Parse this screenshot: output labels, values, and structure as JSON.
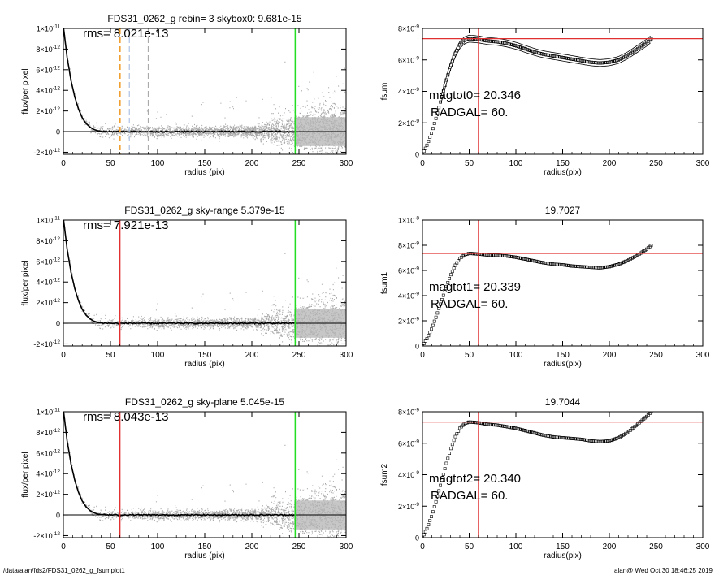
{
  "footer": {
    "path": "/data/alan/fds2/FDS31_0262_g_fsumplot1",
    "timestamp": "alan@  Wed Oct 30 18:46:25 2019"
  },
  "colors": {
    "scatter": "#a8a8a8",
    "profile": "#000000",
    "red": "#e03030",
    "green": "#22dd22",
    "orange": "#f0a030",
    "blue": "#9db6e0",
    "gray": "#a0a0a0"
  },
  "chart_data": [
    {
      "id": "flux-rebin",
      "type": "scatter",
      "title": "FDS31_0262_g rebin= 3    skybox0:  9.681e-15",
      "annotation": "rms= 8.021e-13",
      "xlabel": "radius (pix)",
      "ylabel": "flux/per pixel",
      "xlim": [
        0,
        300
      ],
      "ylim": [
        -2.2e-12,
        1e-11
      ],
      "xticks": [
        "0",
        "50",
        "100",
        "150",
        "200",
        "250",
        "300"
      ],
      "yticks": [
        {
          "v": 1e-11,
          "base": "1×10",
          "exp": "-11"
        },
        {
          "v": 8e-12,
          "base": "8×10",
          "exp": "-12"
        },
        {
          "v": 6e-12,
          "base": "6×10",
          "exp": "-12"
        },
        {
          "v": 4e-12,
          "base": "4×10",
          "exp": "-12"
        },
        {
          "v": 2e-12,
          "base": "2×10",
          "exp": "-12"
        },
        {
          "v": 0,
          "base": "0",
          "exp": ""
        },
        {
          "v": -2e-12,
          "base": "-2×10",
          "exp": "-12"
        }
      ],
      "profile": {
        "x": [
          0,
          4,
          8,
          12,
          16,
          20,
          24,
          28,
          32,
          36,
          40,
          45,
          50,
          60,
          80,
          100,
          150,
          200,
          245
        ],
        "y": [
          1.02e-11,
          7.2e-12,
          5e-12,
          3.4e-12,
          2.2e-12,
          1.35e-12,
          8e-13,
          4.5e-13,
          2.2e-13,
          1e-13,
          4e-14,
          1e-14,
          0,
          -1e-14,
          1e-14,
          -1e-14,
          0,
          0,
          0
        ]
      },
      "vlines": [
        {
          "x": 60,
          "color": "#f0a030",
          "dash": true,
          "width": 2
        },
        {
          "x": 70,
          "color": "#9db6e0",
          "dash": true,
          "width": 1
        },
        {
          "x": 90,
          "color": "#a0a0a0",
          "dash": true,
          "width": 1
        },
        {
          "x": 246,
          "color": "#22dd22",
          "dash": false,
          "width": 1.5
        }
      ],
      "hlines": []
    },
    {
      "id": "fsum0",
      "type": "scatter",
      "title": "",
      "annotation": "magtot0=  20.346",
      "annotation2": "RADGAL=     60.",
      "xlabel": "radius(pix)",
      "ylabel": "fsum",
      "xlim": [
        0,
        300
      ],
      "ylim": [
        0,
        8e-09
      ],
      "xticks": [
        "0",
        "50",
        "100",
        "150",
        "200",
        "250",
        "300"
      ],
      "yticks": [
        {
          "v": 8e-09,
          "base": "8×10",
          "exp": "-9"
        },
        {
          "v": 6e-09,
          "base": "6×10",
          "exp": "-9"
        },
        {
          "v": 4e-09,
          "base": "4×10",
          "exp": "-9"
        },
        {
          "v": 2e-09,
          "base": "2×10",
          "exp": "-9"
        },
        {
          "v": 0,
          "base": "0",
          "exp": ""
        }
      ],
      "curve": {
        "x": [
          0,
          5,
          10,
          15,
          20,
          25,
          30,
          35,
          40,
          45,
          50,
          55,
          60,
          70,
          80,
          90,
          100,
          110,
          120,
          130,
          140,
          150,
          160,
          170,
          180,
          190,
          200,
          210,
          220,
          230,
          240,
          245
        ],
        "y": [
          0,
          6e-10,
          1.4e-09,
          2.4e-09,
          3.5e-09,
          4.6e-09,
          5.6e-09,
          6.4e-09,
          6.95e-09,
          7.25e-09,
          7.35e-09,
          7.33e-09,
          7.3e-09,
          7.2e-09,
          7.15e-09,
          7.05e-09,
          6.9e-09,
          6.7e-09,
          6.5e-09,
          6.35e-09,
          6.25e-09,
          6.15e-09,
          6.05e-09,
          5.95e-09,
          5.85e-09,
          5.8e-09,
          5.85e-09,
          6e-09,
          6.3e-09,
          6.7e-09,
          7.1e-09,
          7.35e-09
        ]
      },
      "envelope": 2.2e-10,
      "vlines": [
        {
          "x": 60,
          "color": "#e03030",
          "dash": false,
          "width": 1.5
        }
      ],
      "hlines": [
        {
          "y": 7.35e-09,
          "color": "#e03030"
        }
      ]
    },
    {
      "id": "flux-sky-range",
      "type": "scatter",
      "title": "FDS31_0262_g sky-range  5.379e-15",
      "annotation": "rms= 7.921e-13",
      "xlabel": "radius (pix)",
      "ylabel": "flux/per pixel",
      "xlim": [
        0,
        300
      ],
      "ylim": [
        -2.2e-12,
        1e-11
      ],
      "xticks": [
        "0",
        "50",
        "100",
        "150",
        "200",
        "250",
        "300"
      ],
      "yticks": [
        {
          "v": 1e-11,
          "base": "1×10",
          "exp": "-11"
        },
        {
          "v": 8e-12,
          "base": "8×10",
          "exp": "-12"
        },
        {
          "v": 6e-12,
          "base": "6×10",
          "exp": "-12"
        },
        {
          "v": 4e-12,
          "base": "4×10",
          "exp": "-12"
        },
        {
          "v": 2e-12,
          "base": "2×10",
          "exp": "-12"
        },
        {
          "v": 0,
          "base": "0",
          "exp": ""
        },
        {
          "v": -2e-12,
          "base": "-2×10",
          "exp": "-12"
        }
      ],
      "profile": {
        "x": [
          0,
          4,
          8,
          12,
          16,
          20,
          24,
          28,
          32,
          36,
          40,
          45,
          50,
          60,
          80,
          100,
          150,
          200,
          245
        ],
        "y": [
          1.02e-11,
          7.2e-12,
          5e-12,
          3.4e-12,
          2.2e-12,
          1.35e-12,
          8e-13,
          4.5e-13,
          2.2e-13,
          1e-13,
          4e-14,
          1e-14,
          0,
          -1e-14,
          1e-14,
          -1e-14,
          0,
          0,
          0
        ]
      },
      "vlines": [
        {
          "x": 60,
          "color": "#e03030",
          "dash": false,
          "width": 1.5
        },
        {
          "x": 246,
          "color": "#22dd22",
          "dash": false,
          "width": 1.5
        }
      ],
      "hlines": []
    },
    {
      "id": "fsum1",
      "type": "scatter",
      "title": "19.7027",
      "annotation": "magtot1=  20.339",
      "annotation2": "RADGAL=     60.",
      "xlabel": "radius(pix)",
      "ylabel": "fsum1",
      "xlim": [
        0,
        300
      ],
      "ylim": [
        0,
        1e-08
      ],
      "xticks": [
        "0",
        "50",
        "100",
        "150",
        "200",
        "250",
        "300"
      ],
      "yticks": [
        {
          "v": 1e-08,
          "base": "1×10",
          "exp": "-8"
        },
        {
          "v": 8e-09,
          "base": "8×10",
          "exp": "-9"
        },
        {
          "v": 6e-09,
          "base": "6×10",
          "exp": "-9"
        },
        {
          "v": 4e-09,
          "base": "4×10",
          "exp": "-9"
        },
        {
          "v": 2e-09,
          "base": "2×10",
          "exp": "-9"
        },
        {
          "v": 0,
          "base": "0",
          "exp": ""
        }
      ],
      "curve": {
        "x": [
          0,
          5,
          10,
          15,
          20,
          25,
          30,
          35,
          40,
          45,
          50,
          55,
          60,
          70,
          80,
          90,
          100,
          110,
          120,
          130,
          140,
          150,
          160,
          170,
          180,
          190,
          200,
          210,
          220,
          230,
          240,
          245
        ],
        "y": [
          0,
          6e-10,
          1.4e-09,
          2.4e-09,
          3.5e-09,
          4.6e-09,
          5.6e-09,
          6.4e-09,
          6.95e-09,
          7.25e-09,
          7.35e-09,
          7.33e-09,
          7.3e-09,
          7.22e-09,
          7.2e-09,
          7.15e-09,
          7.05e-09,
          6.9e-09,
          6.75e-09,
          6.6e-09,
          6.5e-09,
          6.45e-09,
          6.35e-09,
          6.3e-09,
          6.25e-09,
          6.2e-09,
          6.3e-09,
          6.5e-09,
          6.8e-09,
          7.2e-09,
          7.7e-09,
          8e-09
        ]
      },
      "envelope": 0,
      "vlines": [
        {
          "x": 60,
          "color": "#e03030",
          "dash": false,
          "width": 1.5
        }
      ],
      "hlines": [
        {
          "y": 7.35e-09,
          "color": "#e03030"
        }
      ]
    },
    {
      "id": "flux-sky-plane",
      "type": "scatter",
      "title": "FDS31_0262_g sky-plane  5.045e-15",
      "annotation": "rms= 8.043e-13",
      "xlabel": "radius (pix)",
      "ylabel": "flux/per pixel",
      "xlim": [
        0,
        300
      ],
      "ylim": [
        -2.2e-12,
        1e-11
      ],
      "xticks": [
        "0",
        "50",
        "100",
        "150",
        "200",
        "250",
        "300"
      ],
      "yticks": [
        {
          "v": 1e-11,
          "base": "1×10",
          "exp": "-11"
        },
        {
          "v": 8e-12,
          "base": "8×10",
          "exp": "-12"
        },
        {
          "v": 6e-12,
          "base": "6×10",
          "exp": "-12"
        },
        {
          "v": 4e-12,
          "base": "4×10",
          "exp": "-12"
        },
        {
          "v": 2e-12,
          "base": "2×10",
          "exp": "-12"
        },
        {
          "v": 0,
          "base": "0",
          "exp": ""
        },
        {
          "v": -2e-12,
          "base": "-2×10",
          "exp": "-12"
        }
      ],
      "profile": {
        "x": [
          0,
          4,
          8,
          12,
          16,
          20,
          24,
          28,
          32,
          36,
          40,
          45,
          50,
          60,
          80,
          100,
          150,
          200,
          245
        ],
        "y": [
          1.02e-11,
          7.2e-12,
          5e-12,
          3.4e-12,
          2.2e-12,
          1.35e-12,
          8e-13,
          4.5e-13,
          2.2e-13,
          1e-13,
          4e-14,
          1e-14,
          0,
          -1e-14,
          1e-14,
          -1e-14,
          0,
          0,
          0
        ]
      },
      "vlines": [
        {
          "x": 60,
          "color": "#e03030",
          "dash": false,
          "width": 1.5
        },
        {
          "x": 246,
          "color": "#22dd22",
          "dash": false,
          "width": 1.5
        }
      ],
      "hlines": []
    },
    {
      "id": "fsum2",
      "type": "scatter",
      "title": "19.7044",
      "annotation": "magtot2=  20.340",
      "annotation2": "RADGAL=     60.",
      "xlabel": "radius(pix)",
      "ylabel": "fsum2",
      "xlim": [
        0,
        300
      ],
      "ylim": [
        0,
        8e-09
      ],
      "xticks": [
        "0",
        "50",
        "100",
        "150",
        "200",
        "250",
        "300"
      ],
      "yticks": [
        {
          "v": 8e-09,
          "base": "8×10",
          "exp": "-9"
        },
        {
          "v": 6e-09,
          "base": "6×10",
          "exp": "-9"
        },
        {
          "v": 4e-09,
          "base": "4×10",
          "exp": "-9"
        },
        {
          "v": 2e-09,
          "base": "2×10",
          "exp": "-9"
        },
        {
          "v": 0,
          "base": "0",
          "exp": ""
        }
      ],
      "curve": {
        "x": [
          0,
          5,
          10,
          15,
          20,
          25,
          30,
          35,
          40,
          45,
          50,
          55,
          60,
          70,
          80,
          90,
          100,
          110,
          120,
          130,
          140,
          150,
          160,
          170,
          180,
          190,
          200,
          210,
          220,
          230,
          240,
          245
        ],
        "y": [
          0,
          6e-10,
          1.4e-09,
          2.4e-09,
          3.5e-09,
          4.6e-09,
          5.6e-09,
          6.4e-09,
          6.95e-09,
          7.25e-09,
          7.35e-09,
          7.33e-09,
          7.3e-09,
          7.2e-09,
          7.15e-09,
          7.05e-09,
          6.95e-09,
          6.8e-09,
          6.65e-09,
          6.5e-09,
          6.4e-09,
          6.35e-09,
          6.3e-09,
          6.25e-09,
          6.15e-09,
          6.1e-09,
          6.15e-09,
          6.35e-09,
          6.7e-09,
          7.2e-09,
          7.7e-09,
          8e-09
        ]
      },
      "envelope": 0,
      "vlines": [
        {
          "x": 60,
          "color": "#e03030",
          "dash": false,
          "width": 1.5
        }
      ],
      "hlines": [
        {
          "y": 7.35e-09,
          "color": "#e03030"
        }
      ]
    }
  ]
}
